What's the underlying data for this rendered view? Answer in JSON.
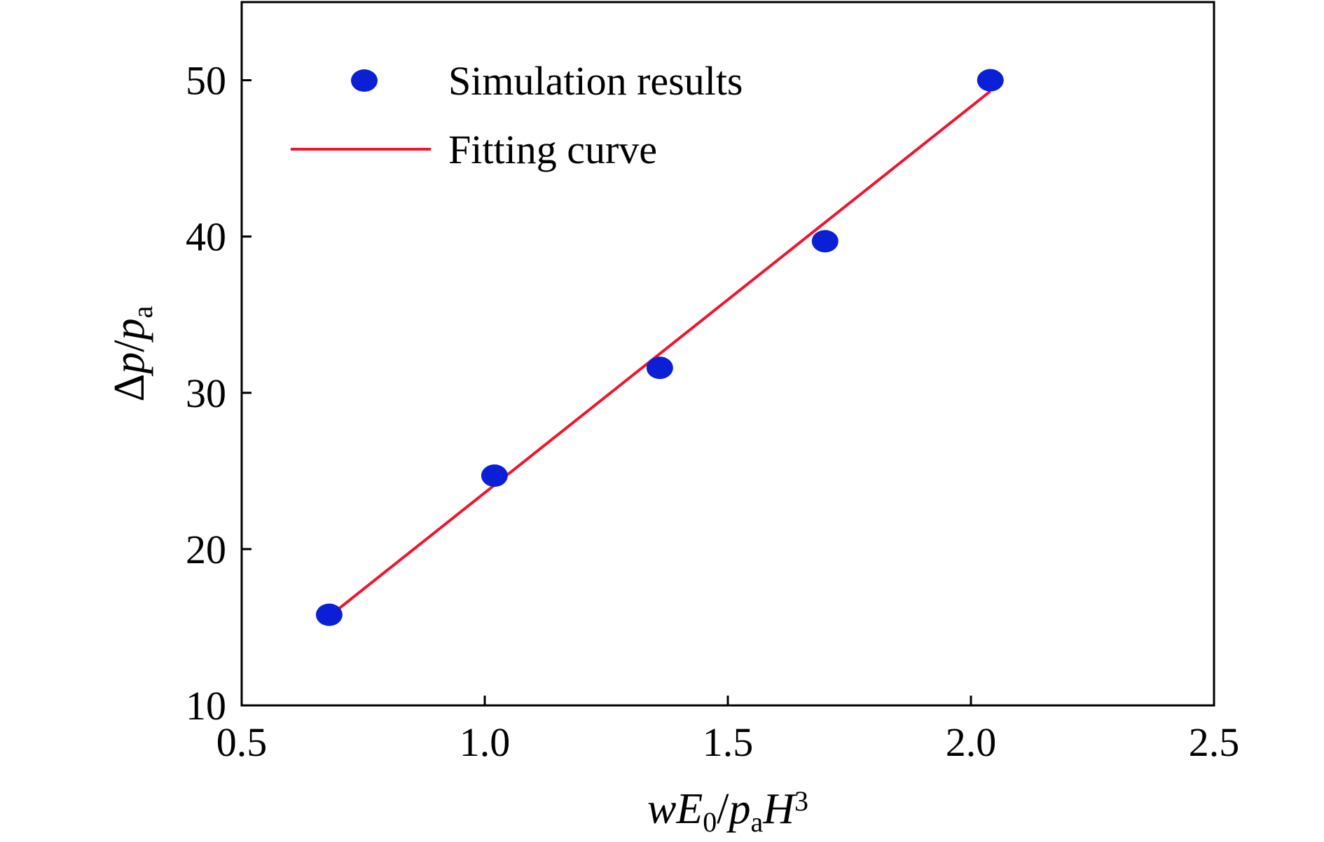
{
  "chart_data": {
    "type": "scatter",
    "xlabel": {
      "parts": [
        {
          "text": "w",
          "style": "italic"
        },
        {
          "text": "E",
          "style": "italic"
        },
        {
          "text": "0",
          "style": "sub"
        },
        {
          "text": "/",
          "style": "normal"
        },
        {
          "text": "p",
          "style": "italic"
        },
        {
          "text": "a",
          "style": "sub"
        },
        {
          "text": "H",
          "style": "italic"
        },
        {
          "text": "3",
          "style": "sup"
        }
      ]
    },
    "ylabel": {
      "parts": [
        {
          "text": "Δ",
          "style": "normal"
        },
        {
          "text": "p",
          "style": "italic"
        },
        {
          "text": "/",
          "style": "normal"
        },
        {
          "text": "p",
          "style": "italic"
        },
        {
          "text": "a",
          "style": "sub"
        }
      ]
    },
    "xlim": [
      0.5,
      2.5
    ],
    "ylim": [
      10,
      55
    ],
    "xticks": [
      0.5,
      1.0,
      1.5,
      2.0,
      2.5
    ],
    "xtick_labels": [
      "0.5",
      "1.0",
      "1.5",
      "2.0",
      "2.5"
    ],
    "yticks": [
      10,
      20,
      30,
      40,
      50
    ],
    "ytick_labels": [
      "10",
      "20",
      "30",
      "40",
      "50"
    ],
    "grid": false,
    "legend_position": "top-left",
    "series": [
      {
        "name": "Simulation results",
        "kind": "scatter",
        "color": "#0a1fd6",
        "x": [
          0.68,
          1.02,
          1.36,
          1.7,
          2.04
        ],
        "y": [
          15.8,
          24.7,
          31.6,
          39.7,
          50.0
        ]
      },
      {
        "name": "Fitting curve",
        "kind": "line",
        "color": "#f0142d",
        "x": [
          0.68,
          2.04
        ],
        "y": [
          15.7,
          49.3
        ]
      }
    ]
  }
}
